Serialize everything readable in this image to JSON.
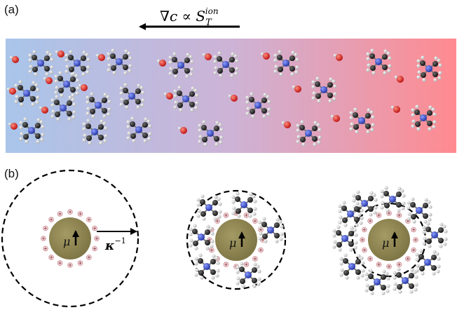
{
  "panels": {
    "a": {
      "label": "(a)"
    },
    "b": {
      "label": "(b)"
    }
  },
  "equation": {
    "lhs": "∇c ∝ S",
    "sub": "T",
    "sup": "ion"
  },
  "particle": {
    "symbol": "μ"
  },
  "debye": {
    "symbol": "κ",
    "exponent": "−1"
  },
  "colors": {
    "gradient_cold": "#a9c5ea",
    "gradient_mid": "#cdb3d6",
    "gradient_hot": "#ff8a90",
    "particle_fill": "#8f8550",
    "nitrogen": "#2c3fb2",
    "carbon": "#1d1d1d",
    "hydrogen": "#cfcfcf",
    "oxygen": "#dd1b1b"
  },
  "icons": [
    "tetramethylammonium-molecule",
    "hydroxide-ion",
    "colloid-particle",
    "counter-ion"
  ]
}
